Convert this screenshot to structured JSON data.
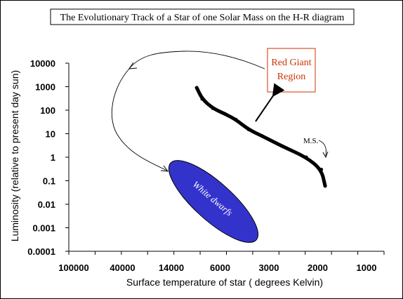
{
  "chart_data": {
    "type": "line",
    "title": "The Evolutionary Track of a Star of one Solar Mass on the H-R diagram",
    "xlabel": "Surface temperature of star ( degrees Kelvin)",
    "ylabel": "Luminosity (relative to present day sun)",
    "x_ticks": [
      "100000",
      "40000",
      "14000",
      "6000",
      "3000",
      "2000",
      "1000"
    ],
    "y_ticks": [
      "10000",
      "1000",
      "100",
      "10",
      "1",
      "0.1",
      "0.01",
      "0.001",
      "0.0001"
    ],
    "y_scale": "log",
    "y_range": [
      0.0001,
      10000
    ],
    "grid": false,
    "series": [
      {
        "points": [
          {
            "x": 9000,
            "y": 900
          },
          {
            "x": 8200,
            "y": 300
          },
          {
            "x": 6800,
            "y": 120
          },
          {
            "x": 5600,
            "y": 70
          },
          {
            "x": 4800,
            "y": 40
          },
          {
            "x": 4000,
            "y": 15
          },
          {
            "x": 3300,
            "y": 8
          },
          {
            "x": 2700,
            "y": 3
          },
          {
            "x": 2200,
            "y": 1
          },
          {
            "x": 1900,
            "y": 0.3
          },
          {
            "x": 1800,
            "y": 0.06
          }
        ]
      }
    ],
    "annotations": {
      "red_giant": {
        "text": "Red Giant Region",
        "color": "#cc3300"
      },
      "white_dwarfs": {
        "text": "White dwarfs",
        "color": "#3333cc"
      },
      "main_sequence": {
        "text": "M.S."
      }
    }
  }
}
